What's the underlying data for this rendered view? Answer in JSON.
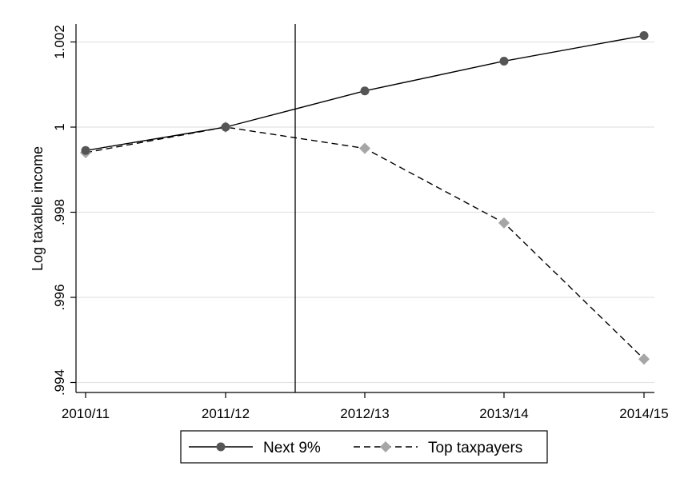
{
  "chart_data": {
    "type": "line",
    "ylabel": "Log taxable income",
    "xlabel": "",
    "categories": [
      "2010/11",
      "2011/12",
      "2012/13",
      "2013/14",
      "2014/15"
    ],
    "yticks": [
      0.994,
      0.996,
      0.998,
      1,
      1.002
    ],
    "ytick_labels": [
      ".994",
      ".996",
      ".998",
      "1",
      "1.002"
    ],
    "ylim": [
      0.9937,
      1.00235
    ],
    "grid": true,
    "vline_between": [
      "2011/12",
      "2012/13"
    ],
    "legend_position": "bottom",
    "series": [
      {
        "name": "Next 9%",
        "values": [
          0.99945,
          1.0,
          1.00085,
          1.00155,
          1.00215
        ],
        "marker": "circle",
        "line": "solid",
        "color": "#555555"
      },
      {
        "name": "Top taxpayers",
        "values": [
          0.9994,
          1.0,
          0.9995,
          0.99775,
          0.99455
        ],
        "marker": "diamond",
        "line": "dashed",
        "color": "#a6a6a6"
      }
    ]
  }
}
